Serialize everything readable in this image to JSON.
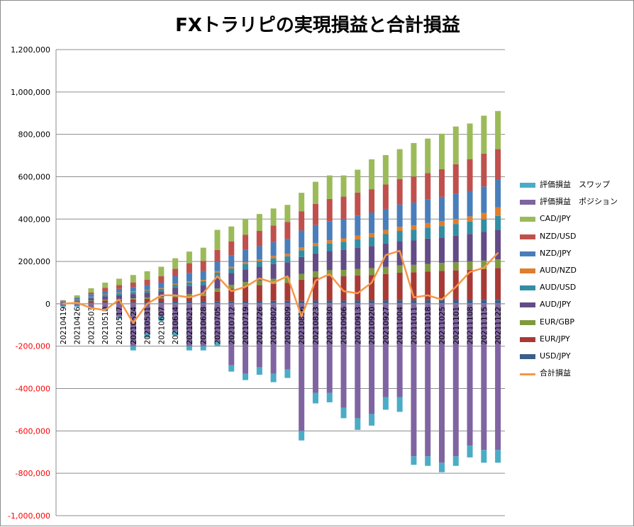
{
  "chart_data": {
    "type": "bar",
    "stacked": true,
    "title": "FXトラリピの実現損益と合計損益",
    "xlabel": "",
    "ylabel": "",
    "ylim": [
      -1000000,
      1200000
    ],
    "yticks": [
      1200000,
      1000000,
      800000,
      600000,
      400000,
      200000,
      0,
      -200000,
      -400000,
      -600000,
      -800000,
      -1000000
    ],
    "ytick_labels": [
      "1,200,000",
      "1,000,000",
      "800,000",
      "600,000",
      "400,000",
      "200,000",
      "0",
      "-200,000",
      "-400,000",
      "-600,000",
      "-800,000",
      "-1,000,000"
    ],
    "negative_tick_color": "#ff0000",
    "grid": true,
    "legend_position": "right",
    "categories": [
      "20210419",
      "20210426",
      "20210503",
      "20210510",
      "20210517",
      "20210524",
      "20210531",
      "20210607",
      "20210614",
      "20210621",
      "20210628",
      "20210705",
      "20210712",
      "20210719",
      "20210726",
      "20210802",
      "20210809",
      "20210816",
      "20210823",
      "20210830",
      "20210906",
      "20210913",
      "20210920",
      "20210927",
      "20211004",
      "20211011",
      "20211018",
      "20211025",
      "20211101",
      "20211108",
      "20211115",
      "20211122"
    ],
    "xtick_labels": [
      "20210419",
      "20210426",
      "20210503",
      "20210510",
      "20210517",
      "20210524",
      "20210531",
      "20210607",
      "20210614",
      "20210621",
      "20210628",
      "20210705",
      "20210712",
      "20210719",
      "20210726",
      "20210802",
      "20210809",
      "20210816",
      "20210823",
      "20210830",
      "20210906",
      "20210913",
      "20210920",
      "20210927",
      "20211004",
      "20211011",
      "20211018",
      "20211025",
      "20211101",
      "20211108",
      "20211115",
      "20211122"
    ],
    "positive_series": [
      {
        "name": "USD/JPY",
        "color": "#3b5f8a",
        "values": [
          2000,
          3000,
          5000,
          6000,
          6000,
          7000,
          8000,
          8000,
          10000,
          10000,
          10000,
          12000,
          12000,
          13000,
          13000,
          14000,
          14000,
          14000,
          15000,
          15000,
          15000,
          16000,
          16000,
          16000,
          17000,
          17000,
          17000,
          18000,
          18000,
          18000,
          19000,
          19000
        ]
      },
      {
        "name": "EUR/JPY",
        "color": "#a83a36",
        "values": [
          3000,
          5000,
          8000,
          10000,
          12000,
          13000,
          15000,
          17000,
          22000,
          25000,
          27000,
          45000,
          60000,
          70000,
          75000,
          80000,
          85000,
          100000,
          110000,
          115000,
          115000,
          118000,
          120000,
          125000,
          130000,
          132000,
          135000,
          138000,
          140000,
          143000,
          145000,
          150000
        ]
      },
      {
        "name": "EUR/GBP",
        "color": "#7f9a3e",
        "values": [
          1000,
          2000,
          3000,
          4000,
          5000,
          6000,
          7000,
          8000,
          10000,
          11000,
          12000,
          15000,
          18000,
          20000,
          22000,
          24000,
          25000,
          27000,
          28000,
          29000,
          30000,
          31000,
          32000,
          33000,
          34000,
          35000,
          36000,
          37000,
          38000,
          39000,
          40000,
          41000
        ]
      },
      {
        "name": "AUD/JPY",
        "color": "#634b86",
        "values": [
          3000,
          5000,
          10000,
          15000,
          18000,
          20000,
          22000,
          25000,
          33000,
          38000,
          40000,
          55000,
          55000,
          60000,
          65000,
          70000,
          72000,
          80000,
          85000,
          90000,
          95000,
          100000,
          105000,
          110000,
          115000,
          115000,
          120000,
          120000,
          125000,
          130000,
          135000,
          140000
        ]
      },
      {
        "name": "AUD/USD",
        "color": "#328ea4",
        "values": [
          2000,
          4000,
          6000,
          8000,
          9000,
          10000,
          11000,
          13000,
          15000,
          17000,
          18000,
          20000,
          22000,
          24000,
          25000,
          27000,
          28000,
          32000,
          35000,
          36000,
          38000,
          40000,
          42000,
          45000,
          48000,
          50000,
          52000,
          54000,
          56000,
          58000,
          60000,
          65000
        ]
      },
      {
        "name": "AUD/NZD",
        "color": "#e07e2c",
        "values": [
          500,
          1000,
          1500,
          2000,
          2500,
          3000,
          3500,
          4000,
          5000,
          5500,
          6000,
          7000,
          8000,
          9000,
          10000,
          11000,
          12000,
          13000,
          14000,
          15000,
          16000,
          17000,
          18000,
          19000,
          20000,
          21000,
          22000,
          23000,
          24000,
          25000,
          30000,
          40000
        ]
      },
      {
        "name": "NZD/JPY",
        "color": "#4a7ebb",
        "values": [
          3000,
          7000,
          12000,
          15000,
          18000,
          20000,
          22000,
          25000,
          35000,
          40000,
          42000,
          45000,
          55000,
          60000,
          62000,
          65000,
          70000,
          80000,
          85000,
          90000,
          92000,
          95000,
          98000,
          100000,
          105000,
          108000,
          110000,
          115000,
          118000,
          120000,
          125000,
          130000
        ]
      },
      {
        "name": "NZD/USD",
        "color": "#c0504d",
        "values": [
          1000,
          3000,
          8000,
          15000,
          18000,
          22000,
          25000,
          30000,
          35000,
          45000,
          48000,
          55000,
          65000,
          70000,
          72000,
          78000,
          80000,
          90000,
          100000,
          105000,
          105000,
          108000,
          110000,
          115000,
          120000,
          123000,
          125000,
          130000,
          140000,
          150000,
          155000,
          145000
        ]
      },
      {
        "name": "CAD/JPY",
        "color": "#9bbb59",
        "values": [
          2000,
          10000,
          20000,
          25000,
          30000,
          35000,
          40000,
          45000,
          50000,
          55000,
          62000,
          95000,
          70000,
          75000,
          80000,
          81000,
          81000,
          88000,
          104000,
          111000,
          100000,
          108000,
          141000,
          139000,
          141000,
          158000,
          163000,
          168000,
          178000,
          168000,
          179000,
          180000
        ]
      }
    ],
    "negative_series": [
      {
        "name": "評価損益　ポジション",
        "color": "#8064a2",
        "values": [
          -10000,
          -10000,
          -20000,
          -30000,
          -60000,
          -200000,
          -140000,
          -60000,
          -130000,
          -200000,
          -200000,
          -180000,
          -290000,
          -330000,
          -300000,
          -330000,
          -310000,
          -600000,
          -420000,
          -420000,
          -490000,
          -540000,
          -520000,
          -440000,
          -440000,
          -720000,
          -720000,
          -750000,
          -720000,
          -670000,
          -690000,
          -690000
        ]
      },
      {
        "name": "評価損益　スワップ",
        "color": "#4bacc6",
        "values": [
          -5000,
          -5000,
          -5000,
          -5000,
          -10000,
          -20000,
          -20000,
          -20000,
          -20000,
          -20000,
          -20000,
          -20000,
          -30000,
          -30000,
          -35000,
          -40000,
          -40000,
          -45000,
          -50000,
          -45000,
          -50000,
          -55000,
          -55000,
          -60000,
          -70000,
          -40000,
          -45000,
          -45000,
          -45000,
          -55000,
          -60000,
          -60000
        ]
      }
    ],
    "line_series": {
      "name": "合計損益",
      "color": "#f79646",
      "values": [
        0,
        5000,
        -20000,
        -30000,
        20000,
        -90000,
        0,
        40000,
        40000,
        30000,
        50000,
        130000,
        60000,
        80000,
        120000,
        100000,
        130000,
        -60000,
        110000,
        140000,
        60000,
        50000,
        100000,
        230000,
        250000,
        30000,
        40000,
        20000,
        80000,
        150000,
        170000,
        240000
      ]
    },
    "legend": [
      "評価損益　スワップ",
      "評価損益　ポジション",
      "CAD/JPY",
      "NZD/USD",
      "NZD/JPY",
      "AUD/NZD",
      "AUD/USD",
      "AUD/JPY",
      "EUR/GBP",
      "EUR/JPY",
      "USD/JPY",
      "合計損益"
    ]
  }
}
